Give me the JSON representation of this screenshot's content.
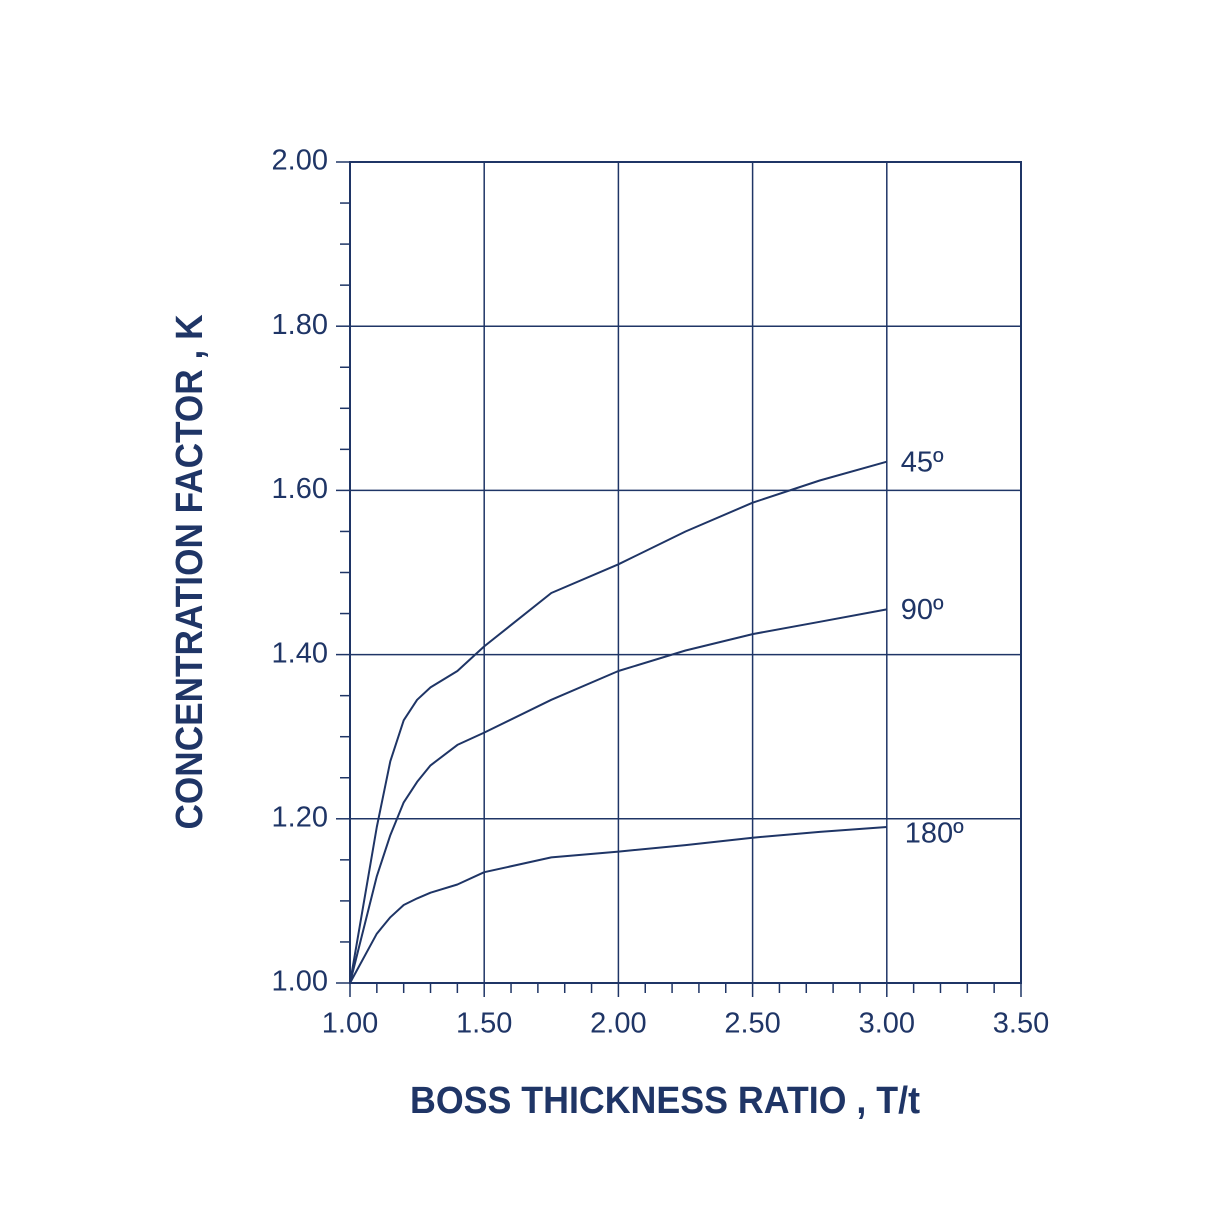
{
  "chart_data": {
    "type": "line",
    "x_label": "BOSS THICKNESS RATIO , T/t",
    "y_label": "CONCENTRATION FACTOR , K",
    "x": [
      1.0,
      1.1,
      1.15,
      1.2,
      1.25,
      1.3,
      1.4,
      1.5,
      1.75,
      2.0,
      2.25,
      2.5,
      2.75,
      3.0
    ],
    "series": [
      {
        "name": "45º",
        "color": "#1f3566",
        "values": [
          1.0,
          1.19,
          1.27,
          1.32,
          1.345,
          1.36,
          1.38,
          1.41,
          1.475,
          1.51,
          1.55,
          1.585,
          1.612,
          1.635
        ]
      },
      {
        "name": "90º",
        "color": "#1f3566",
        "values": [
          1.0,
          1.13,
          1.18,
          1.22,
          1.245,
          1.265,
          1.29,
          1.305,
          1.345,
          1.38,
          1.405,
          1.425,
          1.44,
          1.455
        ]
      },
      {
        "name": "180º",
        "color": "#1f3566",
        "values": [
          1.0,
          1.06,
          1.08,
          1.095,
          1.103,
          1.11,
          1.12,
          1.135,
          1.153,
          1.16,
          1.168,
          1.177,
          1.184,
          1.19
        ]
      }
    ],
    "xlim": [
      1.0,
      3.5
    ],
    "ylim": [
      1.0,
      2.0
    ],
    "xticks": [
      {
        "value": 1.0,
        "label": "1.00"
      },
      {
        "value": 1.5,
        "label": "1.50"
      },
      {
        "value": 2.0,
        "label": "2.00"
      },
      {
        "value": 2.5,
        "label": "2.50"
      },
      {
        "value": 3.0,
        "label": "3.00"
      },
      {
        "value": 3.5,
        "label": "3.50"
      }
    ],
    "yticks": [
      {
        "value": 1.0,
        "label": "1.00"
      },
      {
        "value": 1.2,
        "label": "1.20"
      },
      {
        "value": 1.4,
        "label": "1.40"
      },
      {
        "value": 1.6,
        "label": "1.60"
      },
      {
        "value": 1.8,
        "label": "1.80"
      },
      {
        "value": 2.0,
        "label": "2.00"
      }
    ],
    "xminorticks": [
      1.1,
      1.2,
      1.3,
      1.4,
      1.6,
      1.7,
      1.8,
      1.9,
      2.1,
      2.2,
      2.3,
      2.4,
      2.6,
      2.7,
      2.8,
      2.9,
      3.1,
      3.2,
      3.3,
      3.4
    ],
    "yminorticks": [
      1.05,
      1.1,
      1.15,
      1.25,
      1.3,
      1.35,
      1.45,
      1.5,
      1.55,
      1.65,
      1.7,
      1.75,
      1.85,
      1.9,
      1.95
    ],
    "grid": true,
    "axis_color": "#1f3566"
  }
}
